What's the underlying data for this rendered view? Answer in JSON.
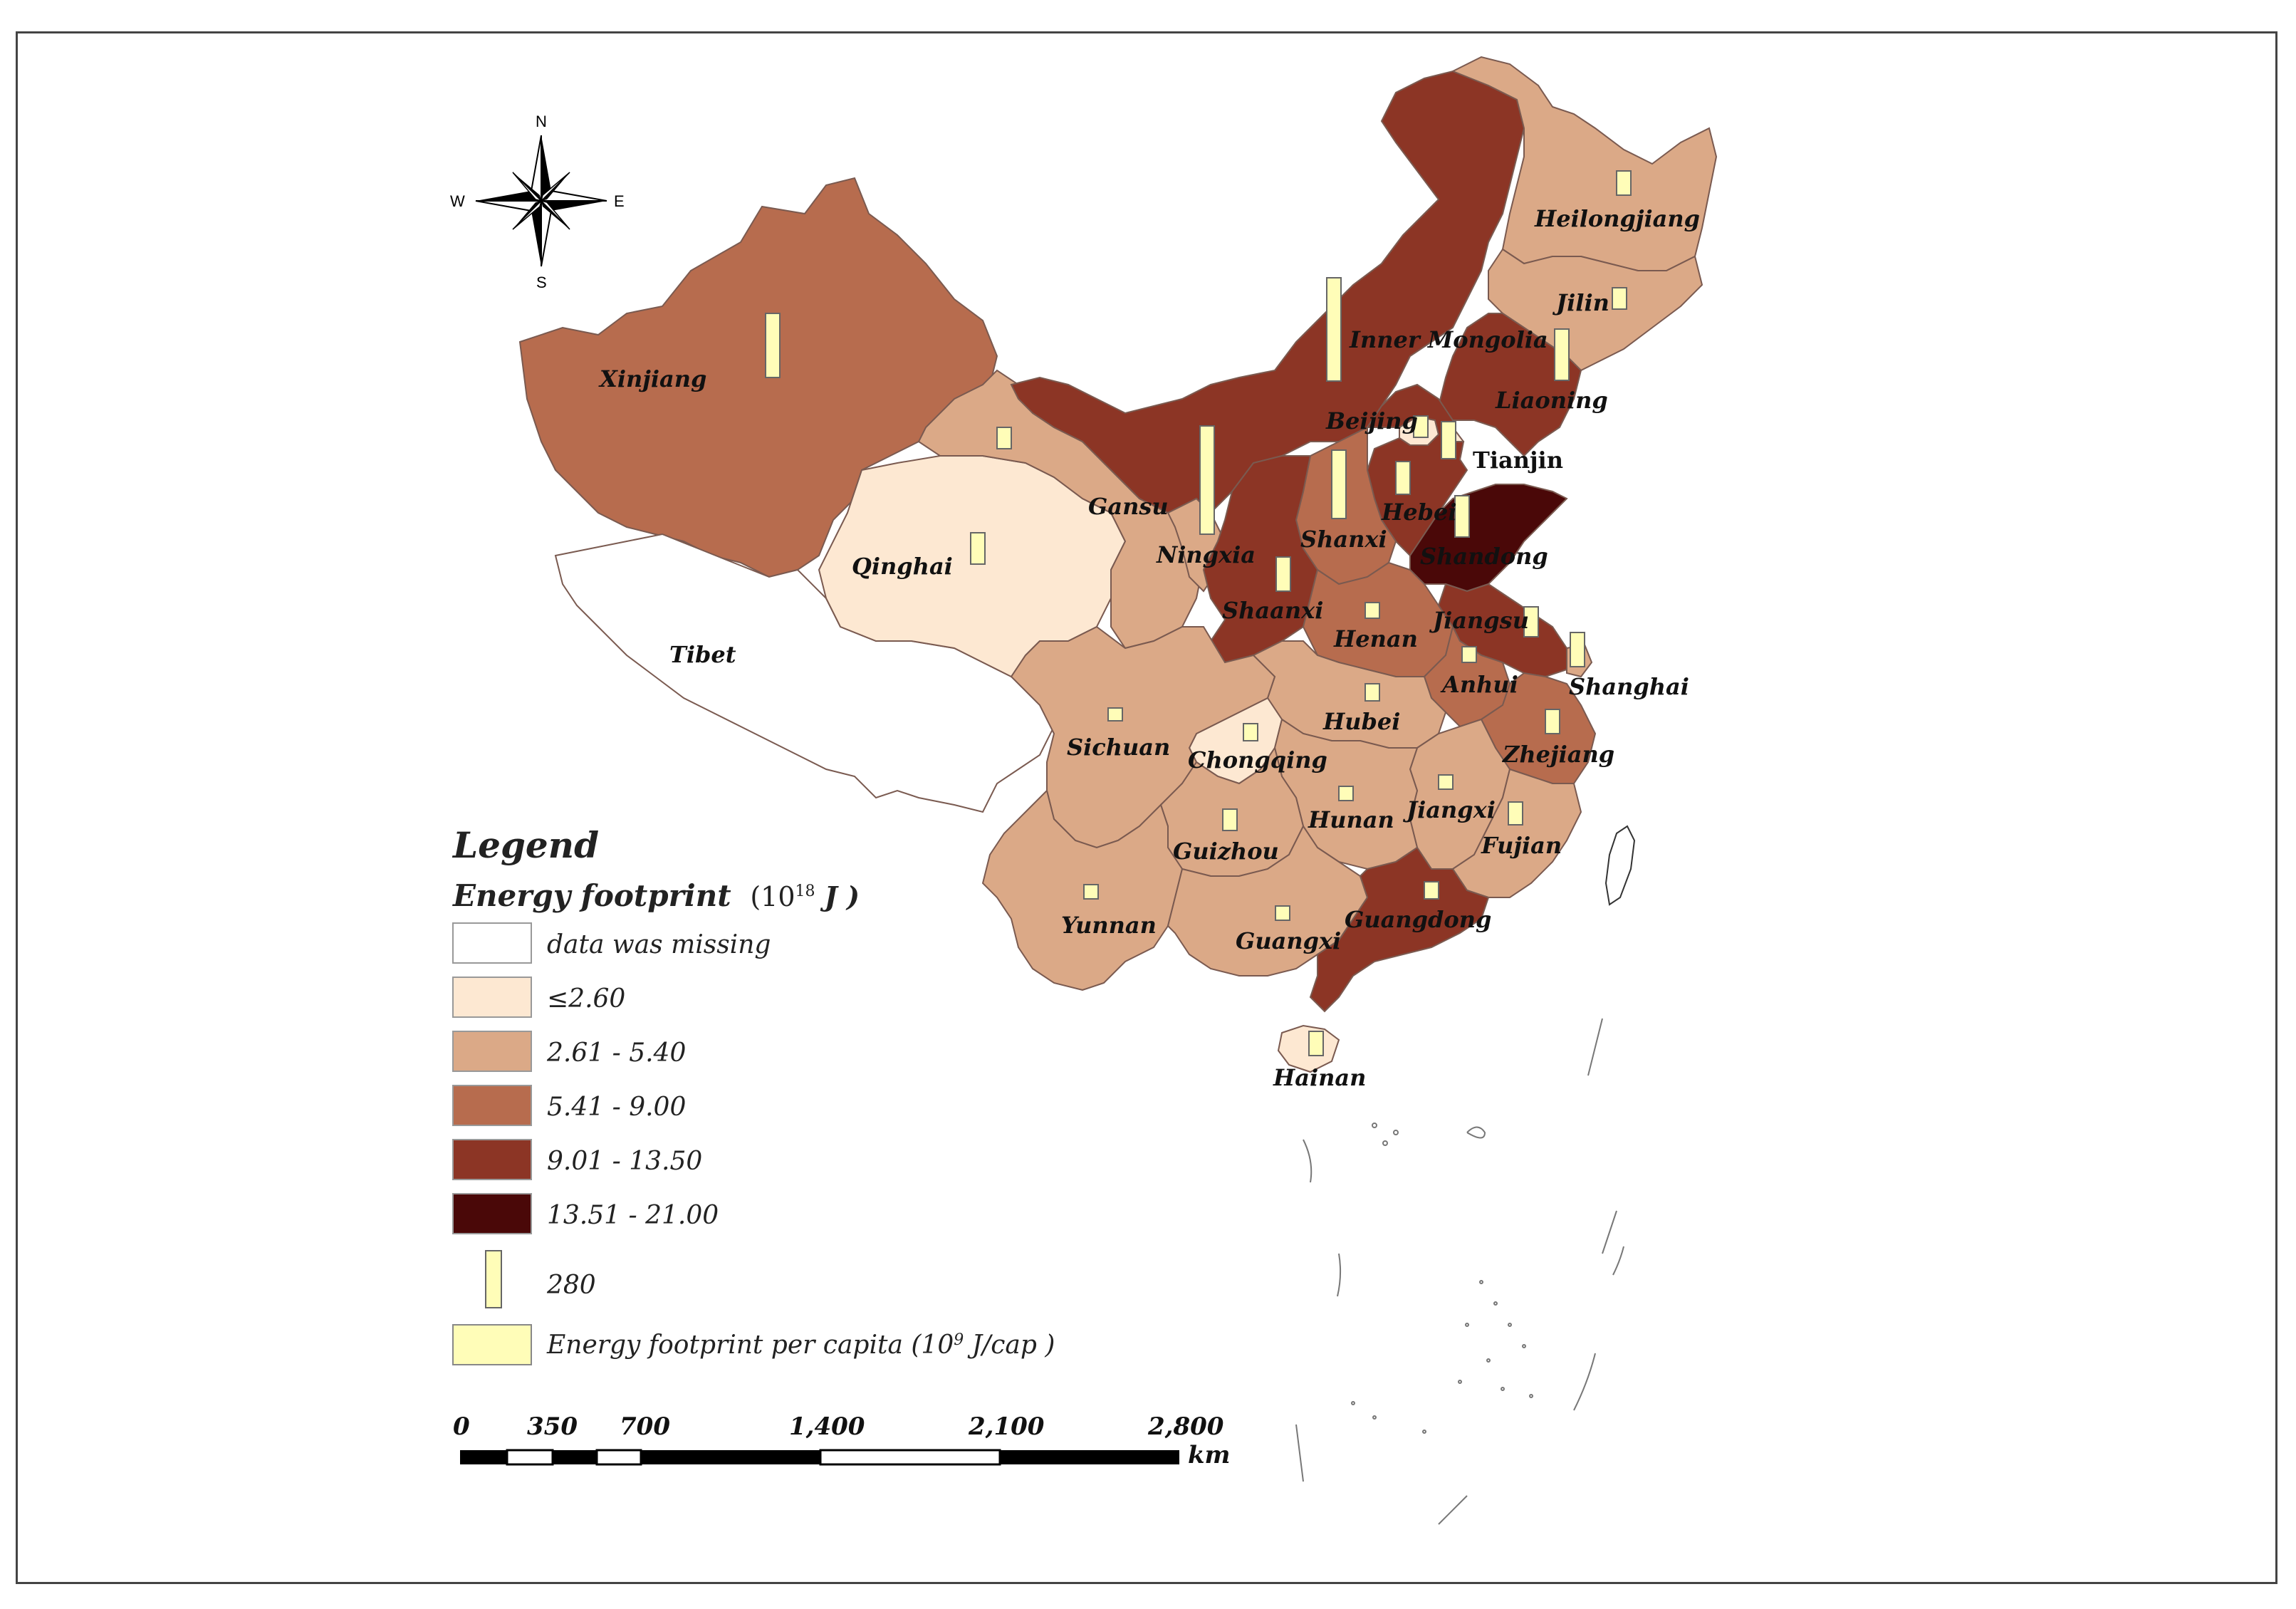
{
  "colors": {
    "missing": "#ffffff",
    "c1": "#fde8d2",
    "c2": "#dba987",
    "c3": "#b76c4e",
    "c4": "#8c3525",
    "c5": "#4a0808",
    "bar": "#fffdb8"
  },
  "compass": {
    "n": "N",
    "s": "S",
    "e": "E",
    "w": "W"
  },
  "provinces": [
    {
      "name": "Xinjiang",
      "cls": "c3"
    },
    {
      "name": "Tibet",
      "cls": "missing"
    },
    {
      "name": "Qinghai",
      "cls": "c1"
    },
    {
      "name": "Gansu",
      "cls": "c2"
    },
    {
      "name": "Inner Mongolia",
      "cls": "c4"
    },
    {
      "name": "Heilongjiang",
      "cls": "c2"
    },
    {
      "name": "Jilin",
      "cls": "c2"
    },
    {
      "name": "Liaoning",
      "cls": "c4"
    },
    {
      "name": "Beijing",
      "cls": "c1"
    },
    {
      "name": "Tianjin",
      "cls": "c1"
    },
    {
      "name": "Hebei",
      "cls": "c4"
    },
    {
      "name": "Shandong",
      "cls": "c5"
    },
    {
      "name": "Shanxi",
      "cls": "c3"
    },
    {
      "name": "Ningxia",
      "cls": "c2"
    },
    {
      "name": "Shaanxi",
      "cls": "c4"
    },
    {
      "name": "Henan",
      "cls": "c3"
    },
    {
      "name": "Jiangsu",
      "cls": "c4"
    },
    {
      "name": "Anhui",
      "cls": "c3"
    },
    {
      "name": "Shanghai",
      "cls": "c2"
    },
    {
      "name": "Hubei",
      "cls": "c2"
    },
    {
      "name": "Chongqing",
      "cls": "c1"
    },
    {
      "name": "Sichuan",
      "cls": "c2"
    },
    {
      "name": "Zhejiang",
      "cls": "c3"
    },
    {
      "name": "Jiangxi",
      "cls": "c2"
    },
    {
      "name": "Hunan",
      "cls": "c2"
    },
    {
      "name": "Guizhou",
      "cls": "c2"
    },
    {
      "name": "Fujian",
      "cls": "c2"
    },
    {
      "name": "Yunnan",
      "cls": "c2"
    },
    {
      "name": "Guangxi",
      "cls": "c2"
    },
    {
      "name": "Guangdong",
      "cls": "c4"
    },
    {
      "name": "Hainan",
      "cls": "c1"
    }
  ],
  "legend": {
    "title": "Legend",
    "subtitle": "Energy footprint",
    "subtitle_unit_base": "(10",
    "subtitle_unit_exp": "18",
    "subtitle_unit_tail": " J )",
    "classes": [
      {
        "label": "data was missing",
        "color_key": "missing"
      },
      {
        "label": "≤2.60",
        "color_key": "c1"
      },
      {
        "label": "2.61 - 5.40",
        "color_key": "c2"
      },
      {
        "label": "5.41 - 9.00",
        "color_key": "c3"
      },
      {
        "label": "9.01 - 13.50",
        "color_key": "c4"
      },
      {
        "label": "13.51 - 21.00",
        "color_key": "c5"
      }
    ],
    "bar_value": "280",
    "per_capita_label_a": "Energy footprint per capita (10",
    "per_capita_label_exp": "9",
    "per_capita_label_b": " J/cap )"
  },
  "scalebar": {
    "ticks": [
      "0",
      "350",
      "700",
      "1,400",
      "2,100",
      "2,800"
    ],
    "unit": "km"
  }
}
